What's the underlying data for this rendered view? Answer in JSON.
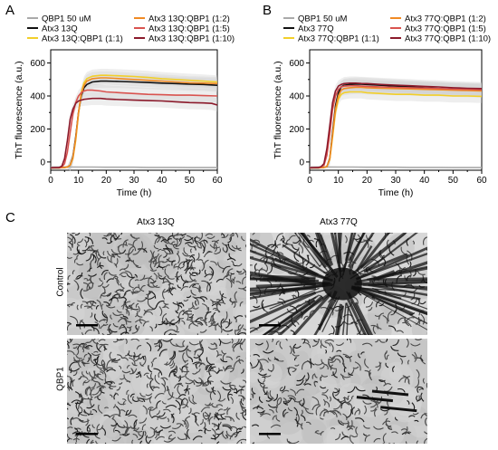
{
  "figure": {
    "panel_labels": [
      "A",
      "B",
      "C"
    ],
    "micrographs": {
      "col_titles": [
        "Atx3 13Q",
        "Atx3 77Q"
      ],
      "row_labels": [
        "Control",
        "QBP1"
      ]
    }
  },
  "chart_data": [
    {
      "type": "line",
      "xlabel": "Time (h)",
      "ylabel": "ThT fluorescence (a.u.)",
      "xlim": [
        0,
        60
      ],
      "ylim": [
        -50,
        680
      ],
      "xticks": [
        0,
        10,
        20,
        30,
        40,
        50,
        60
      ],
      "yticks": [
        0,
        200,
        400,
        600
      ],
      "grid": false,
      "legend_position": "top",
      "series": [
        {
          "name": "QBP1 50 uM",
          "color": "#aaaaaa",
          "x": [
            0,
            5,
            10,
            15,
            20,
            25,
            30,
            35,
            40,
            45,
            50,
            55,
            60
          ],
          "y": [
            -30,
            -30,
            -31,
            -31,
            -32,
            -32,
            -32,
            -33,
            -33,
            -33,
            -34,
            -34,
            -34
          ]
        },
        {
          "name": "Atx3 13Q",
          "color": "#111111",
          "x": [
            0,
            3,
            5,
            6,
            7,
            8,
            9,
            10,
            11,
            12,
            13,
            15,
            18,
            20,
            25,
            30,
            35,
            40,
            45,
            50,
            55,
            60
          ],
          "y": [
            -35,
            -35,
            -33,
            -30,
            -20,
            30,
            150,
            300,
            400,
            450,
            470,
            485,
            490,
            490,
            488,
            485,
            482,
            478,
            475,
            472,
            470,
            465
          ]
        },
        {
          "name": "Atx3 13Q:QBP1 (1:1)",
          "color": "#f2cf2a",
          "x": [
            0,
            3,
            5,
            6,
            7,
            8,
            9,
            10,
            11,
            12,
            13,
            15,
            18,
            20,
            25,
            30,
            35,
            40,
            45,
            50,
            55,
            60
          ],
          "y": [
            -35,
            -35,
            -33,
            -30,
            -20,
            20,
            130,
            290,
            420,
            480,
            505,
            520,
            525,
            525,
            522,
            518,
            512,
            505,
            500,
            495,
            490,
            485
          ]
        },
        {
          "name": "Atx3 13Q:QBP1 (1:2)",
          "color": "#f08a24",
          "x": [
            0,
            3,
            5,
            6,
            7,
            8,
            9,
            10,
            11,
            12,
            13,
            15,
            18,
            20,
            25,
            30,
            35,
            40,
            45,
            50,
            55,
            60
          ],
          "y": [
            -35,
            -35,
            -33,
            -30,
            -20,
            25,
            140,
            300,
            410,
            465,
            490,
            505,
            510,
            510,
            505,
            500,
            495,
            490,
            485,
            480,
            478,
            475
          ]
        },
        {
          "name": "Atx3 13Q:QBP1 (1:5)",
          "color": "#d9534f",
          "x": [
            0,
            3,
            4,
            5,
            6,
            7,
            8,
            9,
            10,
            11,
            12,
            13,
            15,
            18,
            20,
            25,
            30,
            35,
            40,
            45,
            50,
            55,
            60
          ],
          "y": [
            -35,
            -34,
            -30,
            -10,
            60,
            180,
            290,
            360,
            400,
            420,
            430,
            435,
            435,
            430,
            425,
            420,
            415,
            410,
            408,
            405,
            405,
            402,
            400
          ]
        },
        {
          "name": "Atx3 13Q:QBP1 (1:10)",
          "color": "#8b1a2b",
          "x": [
            0,
            3,
            4,
            5,
            6,
            7,
            8,
            9,
            10,
            12,
            15,
            18,
            20,
            25,
            30,
            35,
            40,
            45,
            50,
            55,
            58,
            60
          ],
          "y": [
            -35,
            -34,
            -25,
            20,
            130,
            260,
            320,
            355,
            370,
            380,
            385,
            385,
            382,
            378,
            375,
            372,
            370,
            365,
            360,
            358,
            355,
            345
          ]
        }
      ]
    },
    {
      "type": "line",
      "xlabel": "Time (h)",
      "ylabel": "ThT fluorescence (a.u.)",
      "xlim": [
        0,
        60
      ],
      "ylim": [
        -50,
        680
      ],
      "xticks": [
        0,
        10,
        20,
        30,
        40,
        50,
        60
      ],
      "yticks": [
        0,
        200,
        400,
        600
      ],
      "grid": false,
      "legend_position": "top",
      "series": [
        {
          "name": "QBP1 50 uM",
          "color": "#aaaaaa",
          "x": [
            0,
            5,
            10,
            15,
            20,
            25,
            30,
            35,
            40,
            45,
            50,
            55,
            60
          ],
          "y": [
            -30,
            -30,
            -31,
            -31,
            -32,
            -32,
            -32,
            -33,
            -33,
            -33,
            -34,
            -34,
            -34
          ]
        },
        {
          "name": "Atx3 77Q",
          "color": "#111111",
          "x": [
            0,
            3,
            5,
            6,
            7,
            8,
            9,
            10,
            11,
            12,
            14,
            16,
            18,
            20,
            25,
            30,
            35,
            40,
            45,
            50,
            55,
            60
          ],
          "y": [
            -35,
            -35,
            -33,
            -28,
            20,
            180,
            340,
            420,
            455,
            465,
            470,
            472,
            472,
            470,
            465,
            460,
            455,
            450,
            445,
            440,
            438,
            435
          ]
        },
        {
          "name": "Atx3 77Q:QBP1 (1:1)",
          "color": "#f2cf2a",
          "x": [
            0,
            3,
            5,
            6,
            7,
            8,
            9,
            10,
            11,
            12,
            14,
            16,
            18,
            20,
            25,
            30,
            35,
            40,
            45,
            50,
            55,
            60
          ],
          "y": [
            -35,
            -35,
            -33,
            -28,
            15,
            150,
            300,
            380,
            410,
            420,
            425,
            425,
            425,
            420,
            415,
            410,
            410,
            405,
            405,
            400,
            400,
            398
          ]
        },
        {
          "name": "Atx3 77Q:QBP1 (1:2)",
          "color": "#f08a24",
          "x": [
            0,
            3,
            5,
            6,
            7,
            8,
            9,
            10,
            11,
            12,
            14,
            16,
            18,
            20,
            25,
            30,
            35,
            40,
            45,
            50,
            55,
            60
          ],
          "y": [
            -35,
            -35,
            -33,
            -28,
            18,
            165,
            320,
            400,
            435,
            445,
            450,
            452,
            452,
            450,
            447,
            445,
            443,
            440,
            438,
            435,
            433,
            430
          ]
        },
        {
          "name": "Atx3 77Q:QBP1 (1:5)",
          "color": "#d9534f",
          "x": [
            0,
            3,
            4,
            5,
            6,
            7,
            8,
            9,
            10,
            11,
            12,
            14,
            16,
            18,
            20,
            25,
            30,
            35,
            40,
            45,
            50,
            55,
            60
          ],
          "y": [
            -35,
            -34,
            -30,
            -20,
            40,
            170,
            320,
            400,
            440,
            455,
            460,
            462,
            462,
            460,
            458,
            455,
            452,
            450,
            448,
            445,
            442,
            440,
            438
          ]
        },
        {
          "name": "Atx3 77Q:QBP1 (1:10)",
          "color": "#8b1a2b",
          "x": [
            0,
            3,
            4,
            5,
            6,
            7,
            8,
            9,
            10,
            11,
            12,
            14,
            16,
            18,
            20,
            25,
            30,
            35,
            40,
            45,
            50,
            55,
            60
          ],
          "y": [
            -35,
            -34,
            -28,
            -10,
            80,
            220,
            360,
            430,
            460,
            470,
            475,
            478,
            478,
            476,
            475,
            470,
            466,
            462,
            458,
            455,
            450,
            447,
            445
          ]
        }
      ]
    }
  ]
}
